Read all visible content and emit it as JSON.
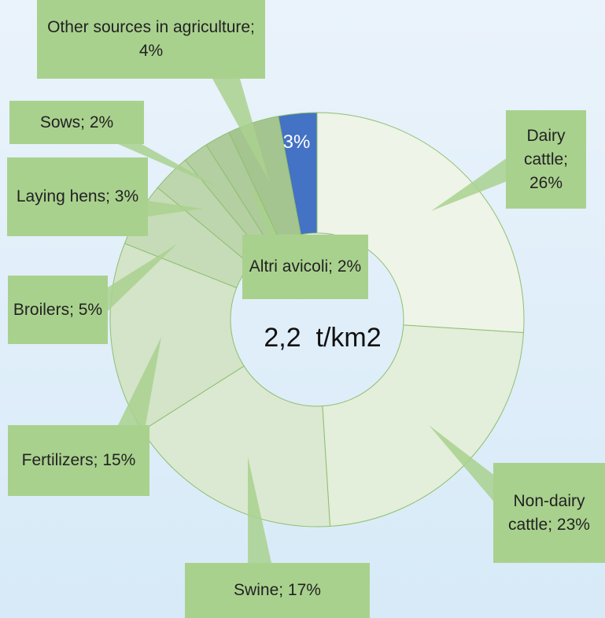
{
  "chart_data": {
    "type": "donut",
    "values": [
      26,
      23,
      17,
      15,
      5,
      3,
      2,
      2,
      4,
      3
    ],
    "value_labels": [
      "Dairy cattle; 26%",
      "Non-dairy cattle; 23%",
      "Swine; 17%",
      "Fertilizers; 15%",
      "Broilers; 5%",
      "Laying hens; 3%",
      "Sows; 2%",
      "Altri avicoli; 2%",
      "Other sources in agriculture; 4%",
      "3%"
    ],
    "colors": [
      "#eef4e8",
      "#e3eedb",
      "#dbe9d2",
      "#d3e4c8",
      "#c6dcb8",
      "#bdd6ad",
      "#b4d0a2",
      "#aecb9b",
      "#a5c590",
      "#4472c4"
    ],
    "annotation": "2,2  t/km2"
  }
}
